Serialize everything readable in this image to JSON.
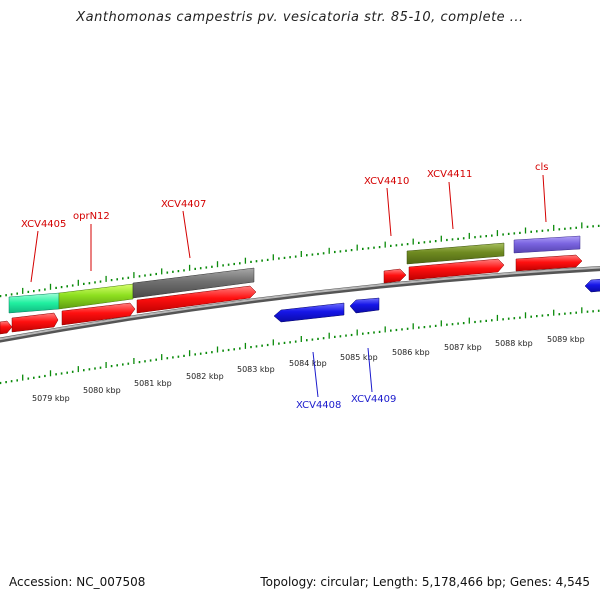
{
  "title": "Xanthomonas campestris pv. vesicatoria str. 85-10, complete ...",
  "footer": {
    "accession": "Accession: NC_007508",
    "topology": "Topology: circular; Length: 5,178,466 bp; Genes: 4,545"
  },
  "scale_labels": [
    "5079 kbp",
    "5080 kbp",
    "5081 kbp",
    "5082 kbp",
    "5083 kbp",
    "5084 kbp",
    "5085 kbp",
    "5086 kbp",
    "5087 kbp",
    "5088 kbp",
    "5089 kbp"
  ],
  "gene_labels": {
    "xcv4405": "XCV4405",
    "oprn12": "oprN12",
    "xcv4407": "XCV4407",
    "xcv4410": "XCV4410",
    "xcv4411": "XCV4411",
    "cls": "cls",
    "xcv4408": "XCV4408",
    "xcv4409": "XCV4409"
  },
  "colors": {
    "forward_gene": "#ff0000",
    "reverse_gene": "#1010e0",
    "forward_label": "#d40000",
    "reverse_label": "#1a1acc",
    "tick": "#0a8a0a",
    "backbone": "#8a8a8a"
  }
}
